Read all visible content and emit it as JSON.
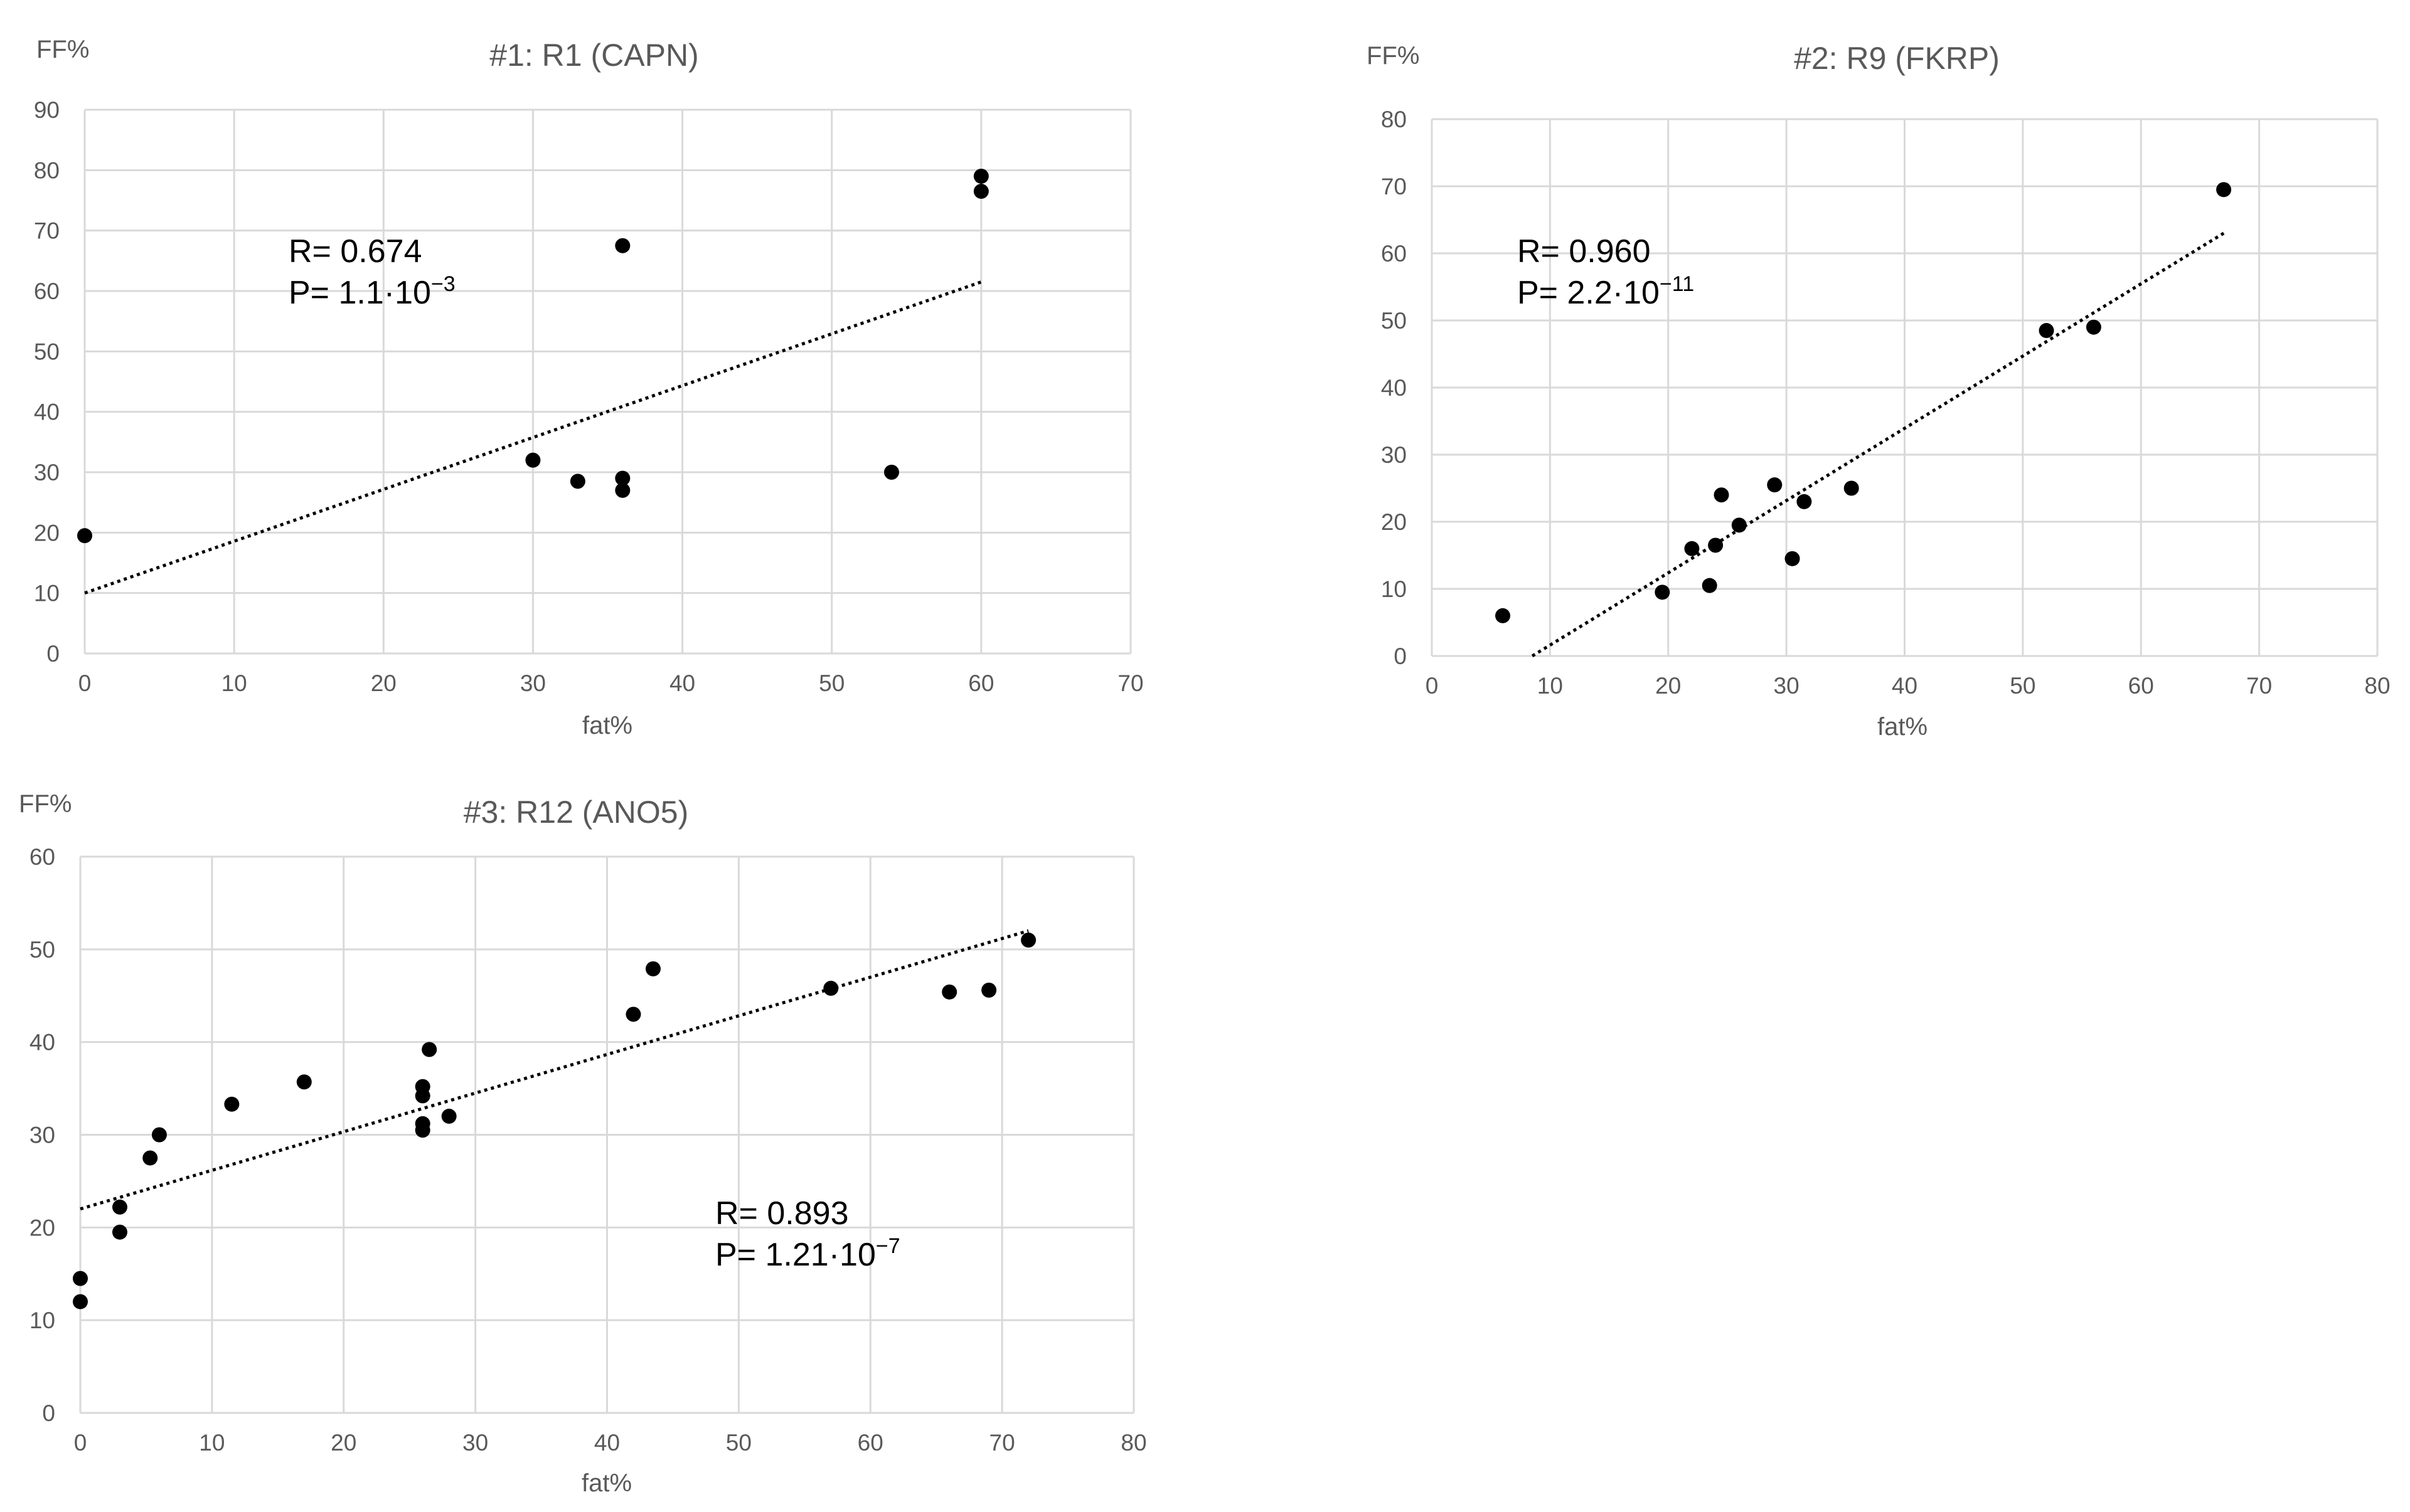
{
  "charts": [
    {
      "type": "scatter",
      "title": "#1: R1 (CAPN)",
      "xlabel": "fat%",
      "ylabel": "FF%",
      "xlim": [
        0,
        70
      ],
      "x_step": 10,
      "ylim": [
        0,
        90
      ],
      "y_step": 10,
      "points": [
        [
          0,
          19.5
        ],
        [
          30,
          32
        ],
        [
          33,
          28.5
        ],
        [
          36,
          67.5
        ],
        [
          36,
          29
        ],
        [
          36,
          27
        ],
        [
          54,
          30
        ],
        [
          60,
          79
        ],
        [
          60,
          76.5
        ]
      ],
      "trendline": {
        "x": [
          0,
          60
        ],
        "y": [
          10,
          61.5
        ]
      },
      "annotation": {
        "r_text": "R= 0.674",
        "p_text": "P= 1.1·10",
        "p_exp": "−3"
      }
    },
    {
      "type": "scatter",
      "title": "#2: R9 (FKRP)",
      "xlabel": "fat%",
      "ylabel": "FF%",
      "xlim": [
        0,
        80
      ],
      "x_step": 10,
      "ylim": [
        0,
        80
      ],
      "y_step": 10,
      "points": [
        [
          6,
          6
        ],
        [
          19.5,
          9.5
        ],
        [
          22,
          16
        ],
        [
          23.5,
          10.5
        ],
        [
          24,
          16.5
        ],
        [
          24.5,
          24
        ],
        [
          26,
          19.5
        ],
        [
          29,
          25.5
        ],
        [
          30.5,
          14.5
        ],
        [
          31.5,
          23
        ],
        [
          35.5,
          25
        ],
        [
          52,
          48.5
        ],
        [
          56,
          49
        ],
        [
          67,
          69.5
        ]
      ],
      "trendline": {
        "x": [
          8.5,
          67
        ],
        "y": [
          0,
          63
        ]
      },
      "annotation": {
        "r_text": "R= 0.960",
        "p_text": "P= 2.2·10",
        "p_exp": "−11"
      }
    },
    {
      "type": "scatter",
      "title": "#3: R12 (ANO5)",
      "xlabel": "fat%",
      "ylabel": "FF%",
      "xlim": [
        0,
        80
      ],
      "x_step": 10,
      "ylim": [
        0,
        60
      ],
      "y_step": 10,
      "points": [
        [
          0,
          14.5
        ],
        [
          0,
          12
        ],
        [
          3,
          22.2
        ],
        [
          3,
          19.5
        ],
        [
          5.3,
          27.5
        ],
        [
          6,
          30
        ],
        [
          11.5,
          33.3
        ],
        [
          17,
          35.7
        ],
        [
          26,
          35.2
        ],
        [
          26,
          34.2
        ],
        [
          26,
          31.2
        ],
        [
          26,
          30.5
        ],
        [
          26.5,
          39.2
        ],
        [
          28,
          32
        ],
        [
          42,
          43
        ],
        [
          43.5,
          47.9
        ],
        [
          57,
          45.8
        ],
        [
          66,
          45.4
        ],
        [
          69,
          45.6
        ],
        [
          72,
          51
        ]
      ],
      "trendline": {
        "x": [
          0,
          72
        ],
        "y": [
          22,
          52
        ]
      },
      "annotation": {
        "r_text": "R= 0.893",
        "p_text": "P= 1.21·10",
        "p_exp": "−7"
      }
    }
  ]
}
